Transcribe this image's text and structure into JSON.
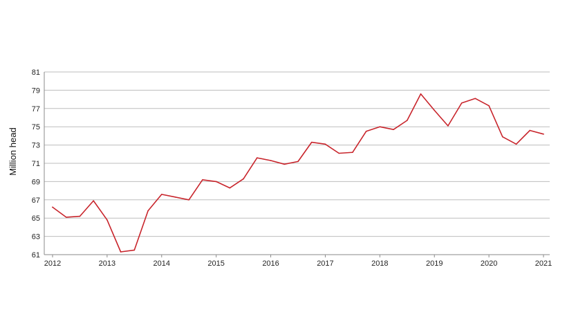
{
  "chart_data": {
    "type": "line",
    "title": "",
    "xlabel": "",
    "ylabel": "Million head",
    "ylim": [
      61,
      81
    ],
    "yticks": [
      61,
      63,
      65,
      67,
      69,
      71,
      73,
      75,
      77,
      79,
      81
    ],
    "xlim": [
      2012,
      2021
    ],
    "xticks": [
      "2012",
      "2013",
      "2014",
      "2015",
      "2016",
      "2017",
      "2018",
      "2019",
      "2020",
      "2021"
    ],
    "grid": true,
    "line_color": "#c8242b",
    "series": [
      {
        "x": [
          2012.0,
          2012.25,
          2012.5,
          2012.75,
          2013.0,
          2013.25,
          2013.5,
          2013.75,
          2014.0,
          2014.25,
          2014.5,
          2014.75,
          2015.0,
          2015.25,
          2015.5,
          2015.75,
          2016.0,
          2016.25,
          2016.5,
          2016.75,
          2017.0,
          2017.25,
          2017.5,
          2017.75,
          2018.0,
          2018.25,
          2018.5,
          2018.75,
          2019.0,
          2019.25,
          2019.5,
          2019.75,
          2020.0,
          2020.25,
          2020.5,
          2020.75,
          2021.0
        ],
        "values": [
          66.2,
          65.1,
          65.2,
          66.9,
          64.8,
          61.3,
          61.5,
          65.8,
          67.6,
          67.3,
          67.0,
          69.2,
          69.0,
          68.3,
          69.3,
          71.6,
          71.3,
          70.9,
          71.2,
          73.3,
          73.1,
          72.1,
          72.2,
          74.5,
          75.0,
          74.7,
          75.7,
          78.6,
          76.8,
          75.1,
          77.6,
          78.1,
          77.3,
          73.9,
          73.1,
          74.6,
          74.2
        ]
      }
    ]
  }
}
